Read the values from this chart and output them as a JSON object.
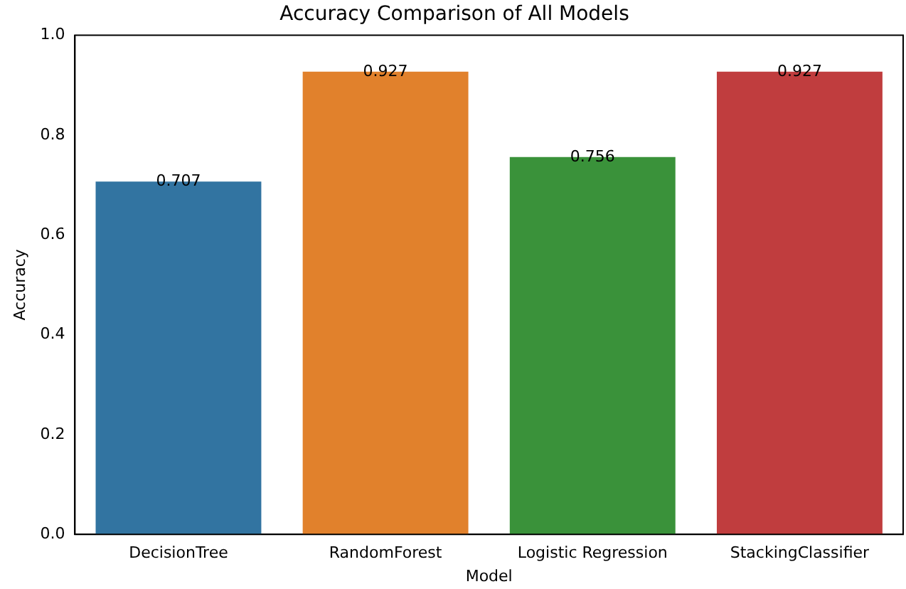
{
  "chart_data": {
    "type": "bar",
    "title": "Accuracy Comparison of All Models",
    "xlabel": "Model",
    "ylabel": "Accuracy",
    "categories": [
      "DecisionTree",
      "RandomForest",
      "Logistic Regression",
      "StackingClassifier"
    ],
    "values": [
      0.707,
      0.927,
      0.756,
      0.927
    ],
    "colors": [
      "#3274a1",
      "#e1812c",
      "#3a923a",
      "#c03d3e"
    ],
    "ylim": [
      0,
      1
    ],
    "yticks": [
      {
        "value": 0,
        "label": "0.0"
      },
      0.2,
      0.4,
      0.6,
      0.8,
      {
        "value": 1,
        "label": "1.0"
      }
    ],
    "grid": false,
    "legend": false,
    "data_labels": true
  }
}
